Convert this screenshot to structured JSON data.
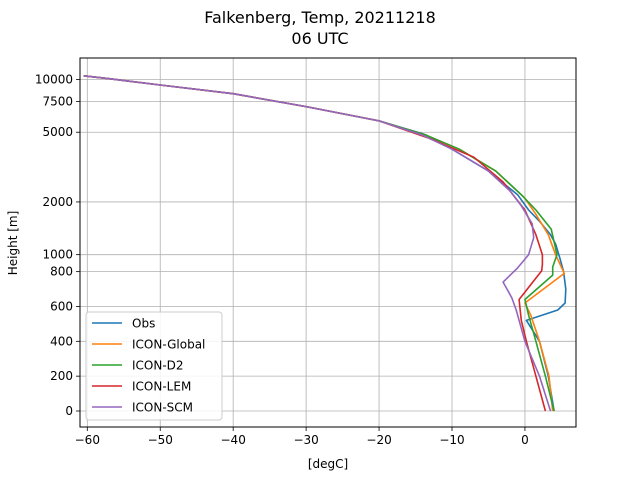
{
  "chart_data": {
    "type": "line",
    "title": "Falkenberg, Temp, 20211218",
    "subtitle": "06 UTC",
    "xlabel": "[degC]",
    "ylabel": "Height [m]",
    "xlim": [
      -61,
      7
    ],
    "x_ticks": [
      -60,
      -50,
      -40,
      -30,
      -20,
      -10,
      0
    ],
    "x_tick_labels": [
      "−60",
      "−50",
      "−40",
      "−30",
      "−20",
      "−10",
      "0"
    ],
    "y_ticks": [
      0,
      200,
      400,
      600,
      800,
      1000,
      2000,
      5000,
      7500,
      10000
    ],
    "y_tick_labels": [
      "0",
      "200",
      "400",
      "600",
      "800",
      "1000",
      "2000",
      "5000",
      "7500",
      "10000"
    ],
    "y_scale": "piecewise (linear 0–800 m, logarithmic above)",
    "grid": true,
    "legend_position": "lower-left",
    "series": [
      {
        "name": "Obs",
        "color": "#1f77b4",
        "points": [
          [
            4,
            0
          ],
          [
            3.2,
            200
          ],
          [
            2,
            400
          ],
          [
            0.2,
            520
          ],
          [
            4.5,
            580
          ],
          [
            5.5,
            620
          ],
          [
            5.6,
            700
          ],
          [
            5.3,
            800
          ],
          [
            4.8,
            950
          ],
          [
            4.2,
            1150
          ],
          [
            3.5,
            1300
          ],
          [
            2,
            1550
          ],
          [
            0.5,
            1800
          ],
          [
            -1,
            2200
          ],
          [
            -5,
            3000
          ],
          [
            -10,
            4000
          ],
          [
            -13.5,
            4800
          ],
          [
            -14,
            4900
          ],
          [
            -20,
            5800
          ],
          [
            -30,
            7000
          ],
          [
            -40,
            8300
          ],
          [
            -50,
            9300
          ],
          [
            -57,
            10100
          ],
          [
            -60.5,
            10500
          ]
        ]
      },
      {
        "name": "ICON-Global",
        "color": "#ff7f0e",
        "points": [
          [
            3.8,
            0
          ],
          [
            3.3,
            200
          ],
          [
            2,
            400
          ],
          [
            0.8,
            550
          ],
          [
            0,
            620
          ],
          [
            5.4,
            790
          ],
          [
            4.2,
            1000
          ],
          [
            3.2,
            1300
          ],
          [
            1.5,
            1700
          ],
          [
            0,
            2100
          ],
          [
            -4,
            3000
          ],
          [
            -9,
            4000
          ],
          [
            -13.5,
            4800
          ],
          [
            -20,
            5800
          ],
          [
            -30,
            7000
          ],
          [
            -40,
            8300
          ],
          [
            -50,
            9300
          ],
          [
            -57,
            10100
          ],
          [
            -60.5,
            10500
          ]
        ]
      },
      {
        "name": "ICON-D2",
        "color": "#2ca02c",
        "points": [
          [
            4,
            0
          ],
          [
            2.8,
            200
          ],
          [
            1.5,
            400
          ],
          [
            0.5,
            550
          ],
          [
            0,
            640
          ],
          [
            3.8,
            780
          ],
          [
            3.8,
            850
          ],
          [
            4.4,
            1000
          ],
          [
            3.6,
            1400
          ],
          [
            1.5,
            1800
          ],
          [
            -0.5,
            2200
          ],
          [
            -4,
            3000
          ],
          [
            -9,
            4000
          ],
          [
            -13.5,
            4800
          ],
          [
            -20,
            5800
          ],
          [
            -30,
            7000
          ],
          [
            -40,
            8300
          ],
          [
            -50,
            9300
          ],
          [
            -57,
            10100
          ],
          [
            -60.5,
            10500
          ]
        ]
      },
      {
        "name": "ICON-LEM",
        "color": "#d62728",
        "points": [
          [
            2.8,
            0
          ],
          [
            1.5,
            200
          ],
          [
            0.2,
            400
          ],
          [
            -0.5,
            520
          ],
          [
            -0.7,
            600
          ],
          [
            -0.8,
            640
          ],
          [
            2.3,
            810
          ],
          [
            2.4,
            880
          ],
          [
            2.4,
            1000
          ],
          [
            1.5,
            1300
          ],
          [
            0,
            1800
          ],
          [
            -3,
            2600
          ],
          [
            -7,
            3600
          ],
          [
            -13,
            4600
          ],
          [
            -20,
            5800
          ],
          [
            -30,
            7000
          ],
          [
            -40,
            8300
          ],
          [
            -50,
            9300
          ],
          [
            -57,
            10100
          ],
          [
            -60.5,
            10500
          ]
        ]
      },
      {
        "name": "ICON-SCM",
        "color": "#9467bd",
        "points": [
          [
            3.5,
            0
          ],
          [
            2,
            200
          ],
          [
            0,
            400
          ],
          [
            -1.2,
            580
          ],
          [
            -1.8,
            650
          ],
          [
            -3,
            740
          ],
          [
            -1,
            840
          ],
          [
            0.5,
            1000
          ],
          [
            1.2,
            1250
          ],
          [
            1,
            1500
          ],
          [
            -0.5,
            1900
          ],
          [
            -2,
            2300
          ],
          [
            -5,
            3000
          ],
          [
            -10,
            4000
          ],
          [
            -14,
            4800
          ],
          [
            -20,
            5800
          ],
          [
            -30,
            7000
          ],
          [
            -40,
            8300
          ],
          [
            -50,
            9300
          ],
          [
            -57,
            10100
          ],
          [
            -60.5,
            10500
          ]
        ]
      }
    ]
  }
}
